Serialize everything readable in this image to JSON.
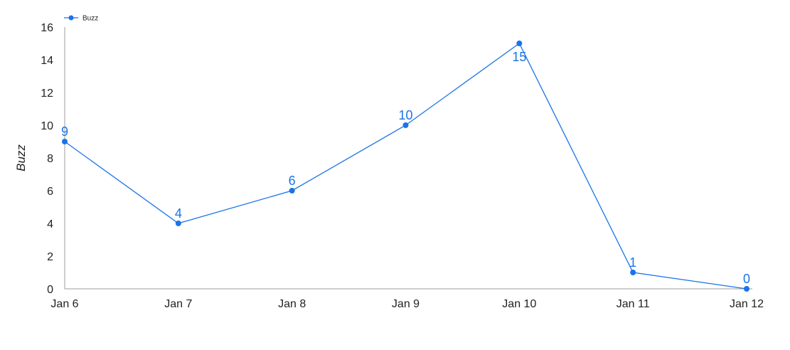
{
  "chart_data": {
    "type": "line",
    "categories": [
      "Jan 6",
      "Jan 7",
      "Jan 8",
      "Jan 9",
      "Jan 10",
      "Jan 11",
      "Jan 12"
    ],
    "series": [
      {
        "name": "Buzz",
        "values": [
          9,
          4,
          6,
          10,
          15,
          1,
          0
        ],
        "color": "#1a73e8"
      }
    ],
    "title": "",
    "xlabel": "",
    "ylabel": "Buzz",
    "ylim": [
      0,
      16
    ],
    "yticks": [
      0,
      2,
      4,
      6,
      8,
      10,
      12,
      14,
      16
    ],
    "grid": false,
    "legend_position": "top-left",
    "data_labels": true,
    "axis_color": "#9e9e9e",
    "line_color": "#1a73e8"
  }
}
